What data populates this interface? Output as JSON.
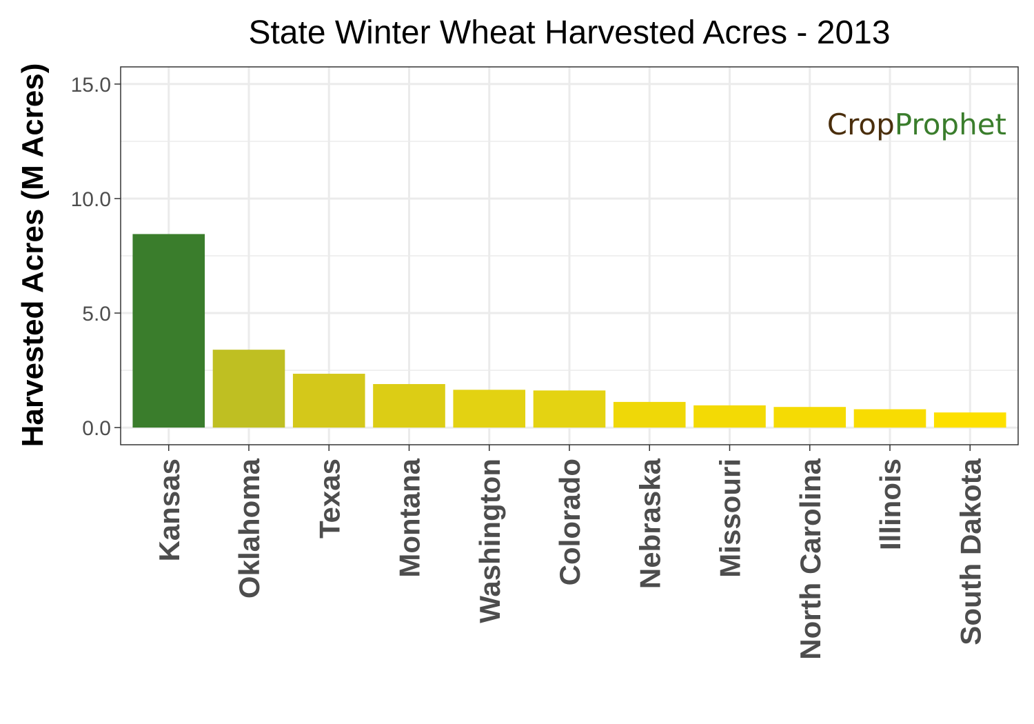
{
  "chart_data": {
    "type": "bar",
    "title": "State Winter Wheat Harvested Acres - 2013",
    "xlabel": "",
    "ylabel": "Harvested Acres (M Acres)",
    "ylim": [
      -0.75,
      15.75
    ],
    "yticks": [
      0,
      5,
      10,
      15
    ],
    "ytick_labels": [
      "0.0",
      "5.0",
      "10.0",
      "15.0"
    ],
    "grid": true,
    "categories": [
      "Kansas",
      "Oklahoma",
      "Texas",
      "Montana",
      "Washington",
      "Colorado",
      "Nebraska",
      "Missouri",
      "North Carolina",
      "Illinois",
      "South Dakota"
    ],
    "values": [
      8.45,
      3.4,
      2.35,
      1.9,
      1.65,
      1.62,
      1.12,
      0.97,
      0.9,
      0.8,
      0.66
    ],
    "colors": [
      "#3a7d2c",
      "#bfbf22",
      "#d4c81a",
      "#dccd15",
      "#e3d212",
      "#e4d312",
      "#efd808",
      "#f3da05",
      "#f5db04",
      "#f8dc02",
      "#fde000"
    ]
  },
  "logo": {
    "text_dark": "Crop",
    "text_green": "Prophet",
    "color_dark": "#4a2e0c",
    "color_green": "#3a7d2c"
  }
}
